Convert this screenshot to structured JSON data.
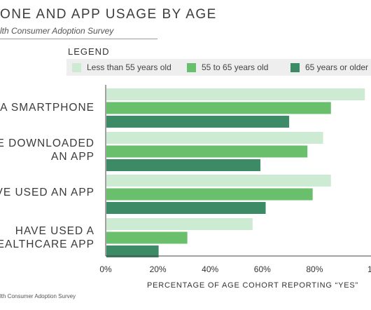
{
  "chart_data": {
    "type": "bar",
    "orientation": "horizontal",
    "title": "ONE AND APP USAGE BY AGE",
    "subtitle": "lth Consumer Adoption Survey",
    "xlabel": "PERCENTAGE OF AGE COHORT REPORTING “YES”",
    "xlim": [
      0,
      100
    ],
    "x_ticks": [
      "0%",
      "20%",
      "40%",
      "60%",
      "80%",
      "1"
    ],
    "x_tick_values": [
      0,
      20,
      40,
      60,
      80,
      100
    ],
    "categories": [
      [
        "N A SMARTPHONE"
      ],
      [
        "VE DOWNLOADED",
        "AN APP"
      ],
      [
        "AVE USED AN APP"
      ],
      [
        "HAVE USED A",
        "HEALTHCARE APP"
      ]
    ],
    "series": [
      {
        "name": "Less than 55 years old",
        "color": "#cdebd3",
        "values": [
          99,
          83,
          86,
          56
        ]
      },
      {
        "name": "55 to 65 years old",
        "color": "#6abf6d",
        "values": [
          86,
          77,
          79,
          31
        ]
      },
      {
        "name": "65 years or older",
        "color": "#3d8a67",
        "values": [
          70,
          59,
          61,
          20
        ]
      }
    ],
    "legend_title": "LEGEND",
    "legend_position": "top",
    "grid": false,
    "source": "lth Consumer Adoption Survey"
  }
}
